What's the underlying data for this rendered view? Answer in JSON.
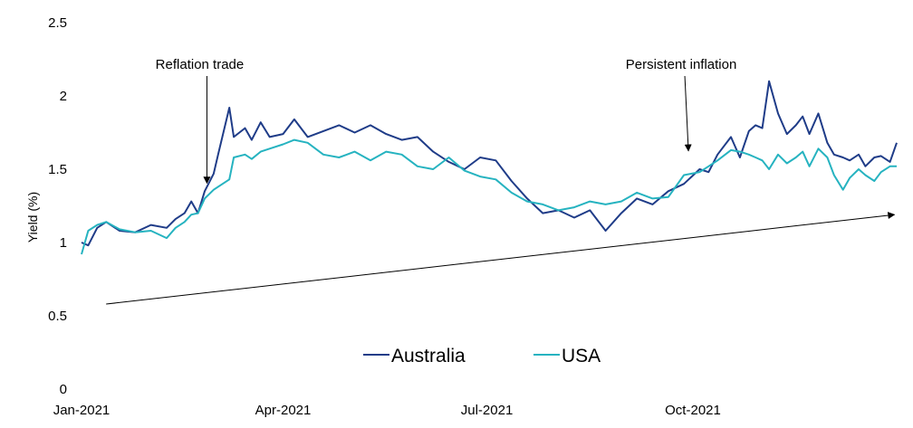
{
  "chart_data": {
    "type": "line",
    "ylabel": "Yield (%)",
    "xlabel": "",
    "ylim": [
      0,
      2.5
    ],
    "yticks": [
      "0",
      "0.5",
      "1",
      "1.5",
      "2",
      "2.5"
    ],
    "x_range": [
      "2021-01-01",
      "2021-12-31"
    ],
    "xticks": [
      {
        "date": "2021-01-01",
        "label": "Jan-2021"
      },
      {
        "date": "2021-04-01",
        "label": "Apr-2021"
      },
      {
        "date": "2021-07-01",
        "label": "Jul-2021"
      },
      {
        "date": "2021-10-01",
        "label": "Oct-2021"
      }
    ],
    "grid": false,
    "legend_position": "bottom-center",
    "series": [
      {
        "name": "Australia",
        "color": "#1f3c88",
        "x": [
          "2021-01-01",
          "2021-01-04",
          "2021-01-08",
          "2021-01-12",
          "2021-01-18",
          "2021-01-25",
          "2021-02-01",
          "2021-02-08",
          "2021-02-12",
          "2021-02-16",
          "2021-02-19",
          "2021-02-22",
          "2021-02-25",
          "2021-03-01",
          "2021-03-03",
          "2021-03-08",
          "2021-03-10",
          "2021-03-15",
          "2021-03-18",
          "2021-03-22",
          "2021-03-26",
          "2021-04-01",
          "2021-04-06",
          "2021-04-12",
          "2021-04-19",
          "2021-04-26",
          "2021-05-03",
          "2021-05-10",
          "2021-05-17",
          "2021-05-24",
          "2021-05-31",
          "2021-06-07",
          "2021-06-14",
          "2021-06-21",
          "2021-06-28",
          "2021-07-05",
          "2021-07-12",
          "2021-07-19",
          "2021-07-26",
          "2021-08-02",
          "2021-08-09",
          "2021-08-16",
          "2021-08-23",
          "2021-08-30",
          "2021-09-06",
          "2021-09-13",
          "2021-09-20",
          "2021-09-27",
          "2021-10-04",
          "2021-10-08",
          "2021-10-12",
          "2021-10-18",
          "2021-10-22",
          "2021-10-26",
          "2021-10-29",
          "2021-11-01",
          "2021-11-04",
          "2021-11-08",
          "2021-11-12",
          "2021-11-16",
          "2021-11-19",
          "2021-11-22",
          "2021-11-26",
          "2021-11-30",
          "2021-12-03",
          "2021-12-07",
          "2021-12-10",
          "2021-12-14",
          "2021-12-17",
          "2021-12-21",
          "2021-12-24",
          "2021-12-28",
          "2021-12-31"
        ],
        "values": [
          1.0,
          0.98,
          1.1,
          1.14,
          1.08,
          1.07,
          1.12,
          1.1,
          1.16,
          1.2,
          1.28,
          1.2,
          1.35,
          1.47,
          1.6,
          1.92,
          1.72,
          1.78,
          1.7,
          1.82,
          1.72,
          1.74,
          1.84,
          1.72,
          1.76,
          1.8,
          1.75,
          1.8,
          1.74,
          1.7,
          1.72,
          1.62,
          1.55,
          1.5,
          1.58,
          1.56,
          1.42,
          1.3,
          1.2,
          1.22,
          1.17,
          1.22,
          1.08,
          1.2,
          1.3,
          1.26,
          1.35,
          1.4,
          1.5,
          1.48,
          1.6,
          1.72,
          1.58,
          1.76,
          1.8,
          1.78,
          2.1,
          1.88,
          1.74,
          1.8,
          1.86,
          1.74,
          1.88,
          1.68,
          1.6,
          1.58,
          1.56,
          1.6,
          1.52,
          1.58,
          1.59,
          1.55,
          1.68
        ]
      },
      {
        "name": "USA",
        "color": "#26b3c0",
        "x": [
          "2021-01-01",
          "2021-01-04",
          "2021-01-08",
          "2021-01-12",
          "2021-01-18",
          "2021-01-25",
          "2021-02-01",
          "2021-02-08",
          "2021-02-12",
          "2021-02-16",
          "2021-02-19",
          "2021-02-22",
          "2021-02-25",
          "2021-03-01",
          "2021-03-03",
          "2021-03-08",
          "2021-03-10",
          "2021-03-15",
          "2021-03-18",
          "2021-03-22",
          "2021-03-26",
          "2021-04-01",
          "2021-04-06",
          "2021-04-12",
          "2021-04-19",
          "2021-04-26",
          "2021-05-03",
          "2021-05-10",
          "2021-05-17",
          "2021-05-24",
          "2021-05-31",
          "2021-06-07",
          "2021-06-14",
          "2021-06-21",
          "2021-06-28",
          "2021-07-05",
          "2021-07-12",
          "2021-07-19",
          "2021-07-26",
          "2021-08-02",
          "2021-08-09",
          "2021-08-16",
          "2021-08-23",
          "2021-08-30",
          "2021-09-06",
          "2021-09-13",
          "2021-09-20",
          "2021-09-27",
          "2021-10-04",
          "2021-10-08",
          "2021-10-12",
          "2021-10-18",
          "2021-10-22",
          "2021-10-26",
          "2021-10-29",
          "2021-11-01",
          "2021-11-04",
          "2021-11-08",
          "2021-11-12",
          "2021-11-16",
          "2021-11-19",
          "2021-11-22",
          "2021-11-26",
          "2021-11-30",
          "2021-12-03",
          "2021-12-07",
          "2021-12-10",
          "2021-12-14",
          "2021-12-17",
          "2021-12-21",
          "2021-12-24",
          "2021-12-28",
          "2021-12-31"
        ],
        "values": [
          0.92,
          1.08,
          1.12,
          1.14,
          1.09,
          1.07,
          1.08,
          1.03,
          1.1,
          1.14,
          1.19,
          1.2,
          1.3,
          1.36,
          1.38,
          1.43,
          1.58,
          1.6,
          1.57,
          1.62,
          1.64,
          1.67,
          1.7,
          1.68,
          1.6,
          1.58,
          1.62,
          1.56,
          1.62,
          1.6,
          1.52,
          1.5,
          1.58,
          1.49,
          1.45,
          1.43,
          1.34,
          1.28,
          1.26,
          1.22,
          1.24,
          1.28,
          1.26,
          1.28,
          1.34,
          1.3,
          1.31,
          1.46,
          1.48,
          1.52,
          1.56,
          1.63,
          1.62,
          1.6,
          1.58,
          1.56,
          1.5,
          1.6,
          1.54,
          1.58,
          1.62,
          1.52,
          1.64,
          1.58,
          1.46,
          1.36,
          1.44,
          1.5,
          1.46,
          1.42,
          1.48,
          1.52,
          1.52
        ]
      }
    ],
    "annotations": [
      {
        "text": "Reflation trade",
        "target_date": "2021-02-26",
        "target_value": 1.38
      },
      {
        "text": "Persistent inflation",
        "target_date": "2021-09-29",
        "target_value": 1.6
      }
    ],
    "trend_line": {
      "start_date": "2021-01-12",
      "start_value": 0.58,
      "end_date": "2021-12-30",
      "end_value": 1.19
    }
  }
}
